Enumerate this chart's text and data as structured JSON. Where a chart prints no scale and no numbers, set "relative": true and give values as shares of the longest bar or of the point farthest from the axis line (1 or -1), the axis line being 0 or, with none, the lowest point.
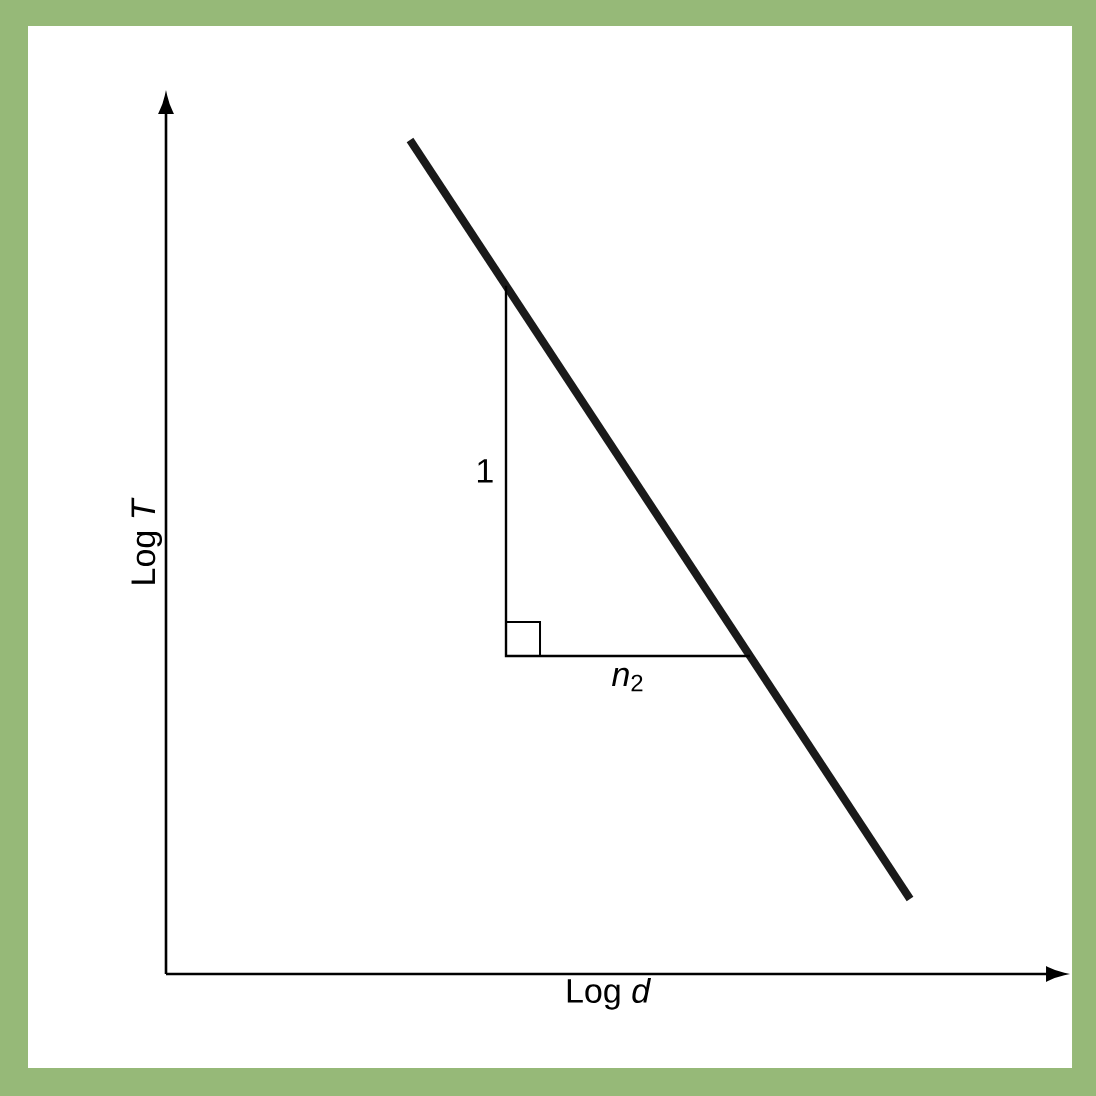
{
  "chart_data": {
    "type": "line",
    "categories": [
      null,
      null
    ],
    "relative": true,
    "series": [
      {
        "color": "#1a1a1a",
        "values": [
          1,
          0.09
        ]
      }
    ],
    "xlabel": "Log *d*",
    "ylabel": "Log *T*",
    "annotations": [
      "1",
      "*n*$_{2}$"
    ],
    "marker": "none",
    "line_style": "solid"
  }
}
